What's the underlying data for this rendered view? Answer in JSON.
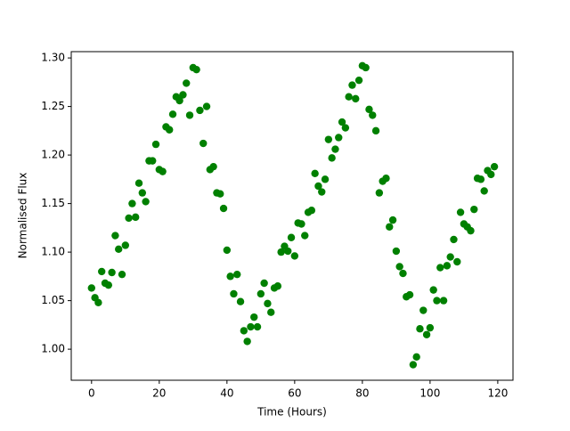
{
  "chart_data": {
    "type": "scatter",
    "x_label": "Time (Hours)",
    "y_label": "Normalised Flux",
    "color": "#008000",
    "x": [
      0,
      1,
      2,
      3,
      4,
      5,
      6,
      7,
      8,
      9,
      10,
      11,
      12,
      13,
      14,
      15,
      16,
      17,
      18,
      19,
      20,
      21,
      22,
      23,
      24,
      25,
      26,
      27,
      28,
      29,
      30,
      31,
      32,
      33,
      34,
      35,
      36,
      37,
      38,
      39,
      40,
      41,
      42,
      43,
      44,
      45,
      46,
      47,
      48,
      49,
      50,
      51,
      52,
      53,
      54,
      55,
      56,
      57,
      58,
      59,
      60,
      61,
      62,
      63,
      64,
      65,
      66,
      67,
      68,
      69,
      70,
      71,
      72,
      73,
      74,
      75,
      76,
      77,
      78,
      79,
      80,
      81,
      82,
      83,
      84,
      85,
      86,
      87,
      88,
      89,
      90,
      91,
      92,
      93,
      94,
      95,
      96,
      97,
      98,
      99,
      100,
      101,
      102,
      103,
      104,
      105,
      106,
      107,
      108,
      109,
      110,
      111,
      112,
      113,
      114,
      115,
      116,
      117,
      118,
      119
    ],
    "values": [
      1.063,
      1.053,
      1.048,
      1.08,
      1.068,
      1.066,
      1.079,
      1.117,
      1.103,
      1.077,
      1.107,
      1.135,
      1.15,
      1.136,
      1.171,
      1.161,
      1.152,
      1.194,
      1.194,
      1.211,
      1.185,
      1.183,
      1.229,
      1.226,
      1.242,
      1.26,
      1.256,
      1.262,
      1.274,
      1.241,
      1.29,
      1.288,
      1.246,
      1.212,
      1.25,
      1.185,
      1.188,
      1.161,
      1.16,
      1.145,
      1.102,
      1.075,
      1.057,
      1.077,
      1.049,
      1.019,
      1.008,
      1.023,
      1.033,
      1.023,
      1.057,
      1.068,
      1.047,
      1.038,
      1.063,
      1.065,
      1.1,
      1.106,
      1.101,
      1.115,
      1.096,
      1.13,
      1.129,
      1.117,
      1.141,
      1.143,
      1.181,
      1.168,
      1.162,
      1.175,
      1.216,
      1.197,
      1.206,
      1.218,
      1.234,
      1.228,
      1.26,
      1.272,
      1.258,
      1.277,
      1.292,
      1.29,
      1.247,
      1.241,
      1.225,
      1.161,
      1.173,
      1.176,
      1.126,
      1.133,
      1.101,
      1.085,
      1.078,
      1.054,
      1.056,
      0.984,
      0.992,
      1.021,
      1.04,
      1.015,
      1.022,
      1.061,
      1.05,
      1.084,
      1.05,
      1.086,
      1.095,
      1.113,
      1.09,
      1.141,
      1.129,
      1.126,
      1.122,
      1.144,
      1.176,
      1.175,
      1.163,
      1.184,
      1.18,
      1.188
    ],
    "xlim": [
      -6,
      124.5
    ],
    "ylim": [
      0.968,
      1.3065
    ],
    "xticks": [
      0,
      20,
      40,
      60,
      80,
      100,
      120
    ],
    "yticks": [
      {
        "value": 1.0,
        "label": "1.00"
      },
      1.05,
      {
        "value": 1.1,
        "label": "1.10"
      },
      1.15,
      {
        "value": 1.2,
        "label": "1.20"
      },
      1.25,
      {
        "value": 1.3,
        "label": "1.30"
      }
    ]
  }
}
